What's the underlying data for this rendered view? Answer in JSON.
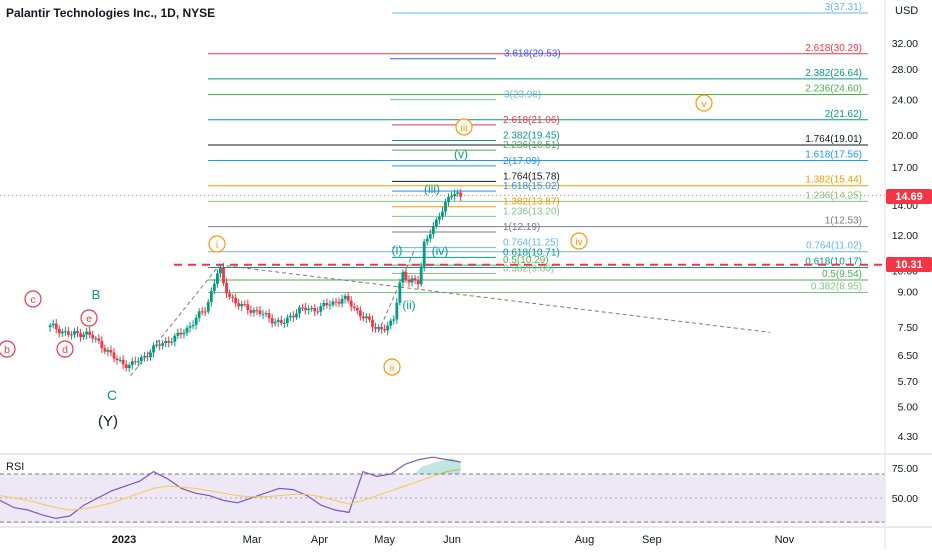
{
  "header": {
    "symbol_title": "Palantir Technologies Inc., 1D, NYSE",
    "currency": "USD"
  },
  "rsi_label": "RSI",
  "price_badges": {
    "last_price": "14.69",
    "level_marker": "10.31",
    "last_color": "#f23645",
    "level_color": "#f23645"
  },
  "chart_data": [
    {
      "type": "candlestick",
      "title": "Palantir Technologies Inc., 1D, NYSE",
      "y_axis": {
        "unit": "USD",
        "scale": "log",
        "ticks": [
          "32.00",
          "28.00",
          "24.00",
          "20.00",
          "17.00",
          "14.00",
          "12.00",
          "10.00",
          "9.00",
          "7.50",
          "6.50",
          "5.70",
          "5.00",
          "4.30"
        ],
        "range": [
          3.95,
          41
        ]
      },
      "x_axis": {
        "ticks": [
          "2023",
          "Mar",
          "Apr",
          "May",
          "Jun",
          "Aug",
          "Sep",
          "Nov"
        ]
      },
      "grid": false,
      "colors": {
        "up": "#089981",
        "down": "#f23645"
      },
      "price_path_close": [
        [
          "2022-11-30",
          7.5
        ],
        [
          "2022-12-07",
          7.2
        ],
        [
          "2022-12-14",
          7.3
        ],
        [
          "2022-12-21",
          6.9
        ],
        [
          "2022-12-28",
          6.35
        ],
        [
          "2023-01-04",
          6.15
        ],
        [
          "2023-01-11",
          6.5
        ],
        [
          "2023-01-18",
          6.9
        ],
        [
          "2023-01-25",
          7.1
        ],
        [
          "2023-02-01",
          7.6
        ],
        [
          "2023-02-08",
          8.3
        ],
        [
          "2023-02-14",
          10.2
        ],
        [
          "2023-02-16",
          9.2
        ],
        [
          "2023-02-22",
          8.4
        ],
        [
          "2023-03-01",
          8.2
        ],
        [
          "2023-03-08",
          7.9
        ],
        [
          "2023-03-15",
          7.6
        ],
        [
          "2023-03-22",
          8.2
        ],
        [
          "2023-03-29",
          8.2
        ],
        [
          "2023-04-05",
          8.4
        ],
        [
          "2023-04-12",
          8.7
        ],
        [
          "2023-04-19",
          8.1
        ],
        [
          "2023-04-26",
          7.5
        ],
        [
          "2023-05-02",
          7.45
        ],
        [
          "2023-05-05",
          7.7
        ],
        [
          "2023-05-09",
          10.0
        ],
        [
          "2023-05-12",
          9.4
        ],
        [
          "2023-05-17",
          9.5
        ],
        [
          "2023-05-19",
          11.5
        ],
        [
          "2023-05-24",
          12.5
        ],
        [
          "2023-05-26",
          13.3
        ],
        [
          "2023-05-31",
          14.7
        ],
        [
          "2023-06-05",
          14.69
        ]
      ],
      "trendlines": [
        "dashed grey from the Dec low to the Feb high",
        "dashed grey from the Feb high to the right edge"
      ],
      "horizontal_level": {
        "price": 10.31,
        "style": "red dashed"
      },
      "last_price": 14.69,
      "wave_labels": [
        {
          "text": "b",
          "color": "#f23645",
          "circled": true
        },
        {
          "text": "c",
          "color": "#f23645",
          "circled": true
        },
        {
          "text": "d",
          "color": "#f23645",
          "circled": true
        },
        {
          "text": "e",
          "color": "#f23645",
          "circled": true
        },
        {
          "text": "B",
          "color": "#089981",
          "circled": false
        },
        {
          "text": "C",
          "color": "#089981",
          "circled": false
        },
        {
          "text": "(Y)",
          "color": "#131722",
          "circled": false
        },
        {
          "text": "i",
          "color": "#ff9800",
          "circled": true
        },
        {
          "text": "ii",
          "color": "#ff9800",
          "circled": true
        },
        {
          "text": "iii",
          "color": "#ff9800",
          "circled": true
        },
        {
          "text": "iv",
          "color": "#ff9800",
          "circled": true
        },
        {
          "text": "v",
          "color": "#ff9800",
          "circled": true
        },
        {
          "text": "(i)",
          "color": "#089981",
          "circled": false
        },
        {
          "text": "(ii)",
          "color": "#089981",
          "circled": false
        },
        {
          "text": "(iii)",
          "color": "#089981",
          "circled": false
        },
        {
          "text": "(iv)",
          "color": "#089981",
          "circled": false
        },
        {
          "text": "(v)",
          "color": "#089981",
          "circled": false
        }
      ],
      "fib_levels_right": [
        {
          "label": "3(37.31)",
          "value": 37.31,
          "color": "#64b5f6"
        },
        {
          "label": "2.618(30.29)",
          "value": 30.29,
          "color": "#f23645"
        },
        {
          "label": "2.382(26.64)",
          "value": 26.64,
          "color": "#089981"
        },
        {
          "label": "2.236(24.60)",
          "value": 24.6,
          "color": "#4caf50"
        },
        {
          "label": "2(21.62)",
          "value": 21.62,
          "color": "#089981"
        },
        {
          "label": "1.764(19.01)",
          "value": 19.01,
          "color": "#131722"
        },
        {
          "label": "1.618(17.56)",
          "value": 17.56,
          "color": "#2196f3"
        },
        {
          "label": "1.382(15.44)",
          "value": 15.44,
          "color": "#ff9800"
        },
        {
          "label": "1.236(14.25)",
          "value": 14.25,
          "color": "#81c784"
        },
        {
          "label": "1(12.53)",
          "value": 12.53,
          "color": "#787b86"
        },
        {
          "label": "0.764(11.02)",
          "value": 11.02,
          "color": "#64b5f6"
        },
        {
          "label": "0.618(10.17)",
          "value": 10.17,
          "color": "#089981"
        },
        {
          "label": "0.5(9.54)",
          "value": 9.54,
          "color": "#4caf50"
        },
        {
          "label": "0.382(8.95)",
          "value": 8.95,
          "color": "#81c784"
        }
      ],
      "fib_levels_inner": [
        {
          "label": "3.618(29.53)",
          "value": 29.53,
          "color": "#2962ff"
        },
        {
          "label": "3(23.96)",
          "value": 23.96,
          "color": "#64b5f6"
        },
        {
          "label": "2.618(21.06)",
          "value": 21.06,
          "color": "#f23645"
        },
        {
          "label": "2.382(19.45)",
          "value": 19.45,
          "color": "#089981"
        },
        {
          "label": "2.236(18.51)",
          "value": 18.51,
          "color": "#4caf50"
        },
        {
          "label": "2(17.09)",
          "value": 17.09,
          "color": "#2196f3"
        },
        {
          "label": "1.764(15.78)",
          "value": 15.78,
          "color": "#131722"
        },
        {
          "label": "1.618(15.02)",
          "value": 15.02,
          "color": "#2196f3"
        },
        {
          "label": "1.382(13.87)",
          "value": 13.87,
          "color": "#ff9800"
        },
        {
          "label": "1.236(13.20)",
          "value": 13.2,
          "color": "#81c784"
        },
        {
          "label": "1(12.19)",
          "value": 12.19,
          "color": "#787b86"
        },
        {
          "label": "0.764(11.25)",
          "value": 11.25,
          "color": "#64b5f6"
        },
        {
          "label": "0.618(10.71)",
          "value": 10.71,
          "color": "#089981"
        },
        {
          "label": "0.5(10.29)",
          "value": 10.29,
          "color": "#4caf50"
        },
        {
          "label": "0.382(9.86)",
          "value": 9.86,
          "color": "#81c784"
        }
      ]
    },
    {
      "type": "line",
      "title": "RSI",
      "y_axis": {
        "ticks": [
          "75.00",
          "50.00"
        ],
        "range": [
          25,
          100
        ]
      },
      "bands": {
        "upper": 70,
        "middle": 50,
        "lower": 30
      },
      "series": [
        {
          "values": [
            48,
            42,
            40,
            36,
            33,
            35,
            44,
            50,
            56,
            60,
            64,
            72,
            66,
            58,
            54,
            52,
            48,
            46,
            50,
            54,
            58,
            57,
            52,
            44,
            40,
            38,
            72,
            68,
            70,
            78,
            82,
            84,
            82,
            80
          ]
        },
        {
          "values": [
            52,
            50,
            48,
            45,
            42,
            40,
            41,
            43,
            46,
            50,
            54,
            58,
            60,
            59,
            58,
            56,
            54,
            52,
            51,
            51,
            52,
            53,
            53,
            51,
            48,
            45,
            48,
            52,
            56,
            60,
            64,
            68,
            72,
            74
          ]
        }
      ],
      "colors": {
        "rsi": "#7e57c2",
        "ma": "#f7c948",
        "band": "#ede7f6"
      }
    }
  ]
}
